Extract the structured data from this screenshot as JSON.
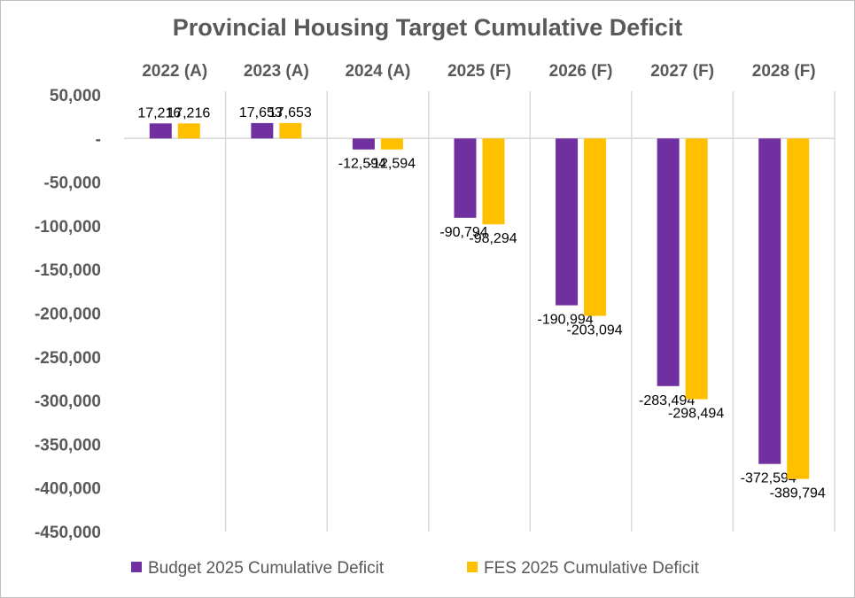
{
  "chart_data": {
    "type": "bar",
    "title": "Provincial Housing Target Cumulative Deficit",
    "categories": [
      "2022 (A)",
      "2023 (A)",
      "2024 (A)",
      "2025 (F)",
      "2026 (F)",
      "2027 (F)",
      "2028 (F)"
    ],
    "series": [
      {
        "name": "Budget 2025 Cumulative Deficit",
        "color": "#7030a0",
        "values": [
          17216,
          17653,
          -12594,
          -90794,
          -190994,
          -283494,
          -372594
        ],
        "labels": [
          "17,216",
          "17,653",
          "-12,594",
          "-90,794",
          "-190,994",
          "-283,494",
          "-372,594"
        ]
      },
      {
        "name": "FES 2025 Cumulative Deficit",
        "color": "#ffc000",
        "values": [
          17216,
          17653,
          -12594,
          -98294,
          -203094,
          -298494,
          -389794
        ],
        "labels": [
          "17,216",
          "17,653",
          "-12,594",
          "-98,294",
          "-203,094",
          "-298,494",
          "-389,794"
        ]
      }
    ],
    "ylim": [
      -450000,
      50000
    ],
    "yticks": [
      {
        "value": 50000,
        "label": "50,000"
      },
      {
        "value": 0,
        "label": "-"
      },
      {
        "value": -50000,
        "label": "-50,000"
      },
      {
        "value": -100000,
        "label": "-100,000"
      },
      {
        "value": -150000,
        "label": "-150,000"
      },
      {
        "value": -200000,
        "label": "-200,000"
      },
      {
        "value": -250000,
        "label": "-250,000"
      },
      {
        "value": -300000,
        "label": "-300,000"
      },
      {
        "value": -350000,
        "label": "-350,000"
      },
      {
        "value": -400000,
        "label": "-400,000"
      },
      {
        "value": -450000,
        "label": "-450,000"
      }
    ],
    "category_axis_position": "top",
    "legend_position": "bottom",
    "grid": "vertical",
    "xlabel": "",
    "ylabel": ""
  }
}
